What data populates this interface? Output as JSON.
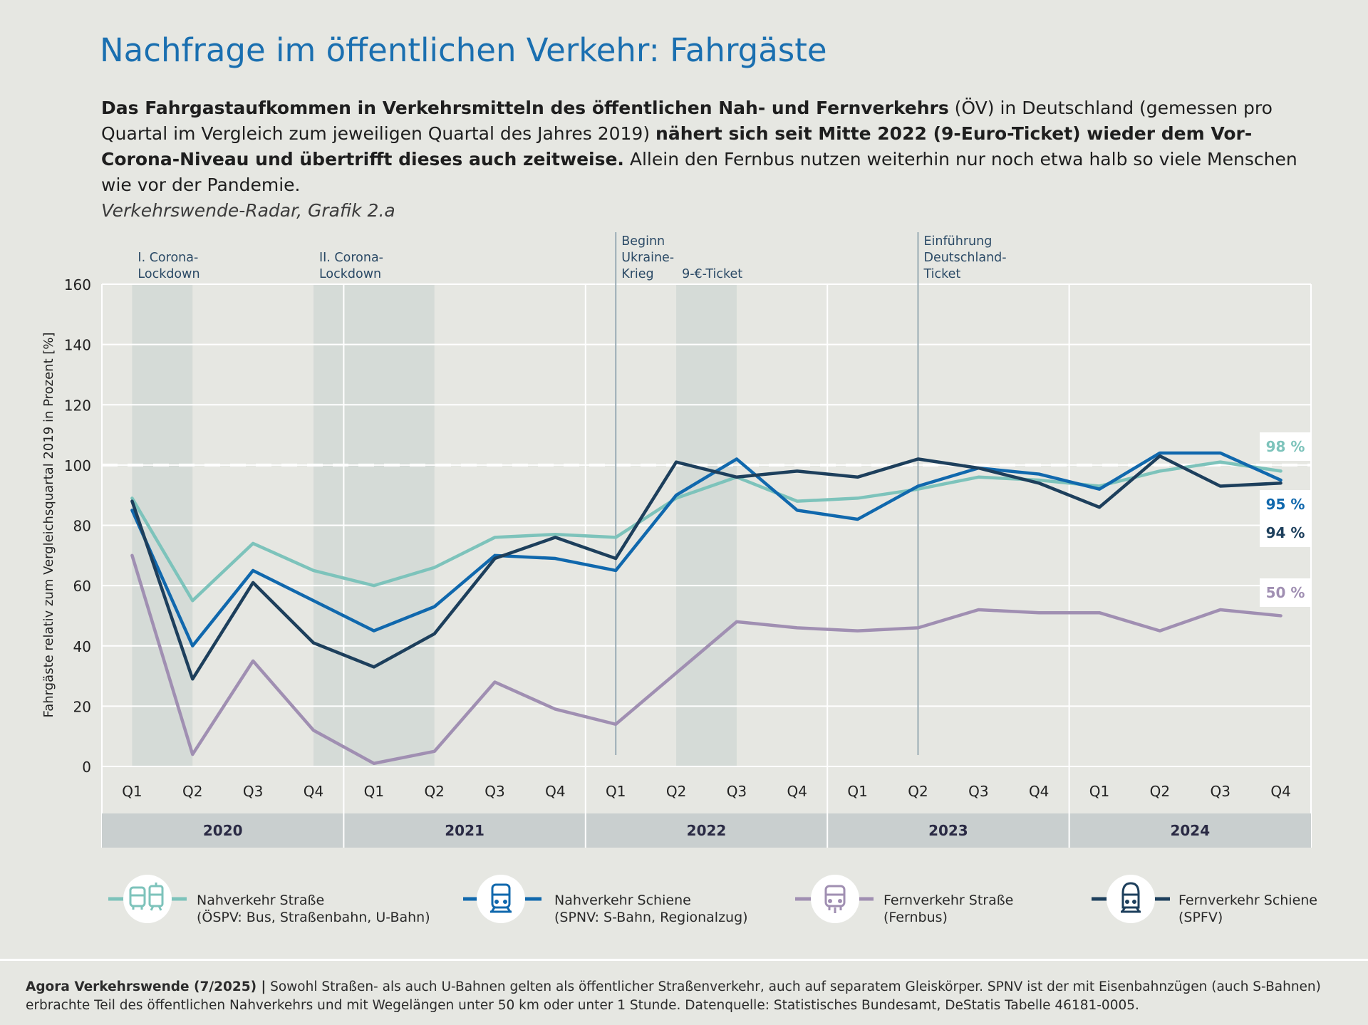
{
  "header": {
    "title": "Nachfrage im öffentlichen Verkehr: Fahrgäste",
    "desc_bold_1": "Das Fahrgastaufkommen in Verkehrsmitteln des öffentlichen Nah- und Fernverkehrs",
    "desc_text_1": " (ÖV) in Deutschland (gemessen pro Quartal im Vergleich zum jeweiligen Quartal des Jahres 2019) ",
    "desc_bold_2": "nähert sich seit Mitte 2022 (9-Euro-Ticket) wieder dem Vor-Corona-Niveau und übertrifft dieses auch zeitweise.",
    "desc_text_2": " Allein den Fernbus nutzen weiterhin nur noch etwa halb so viele Menschen wie vor der Pandemie.",
    "source": "Verkehrswende-Radar, Grafik 2.a"
  },
  "chart_data": {
    "type": "line",
    "ylabel": "Fahrgäste relativ zum Vergleichsquartal 2019 in Prozent [%]",
    "ylim": [
      0,
      160
    ],
    "yticks": [
      "0",
      "20",
      "40",
      "60",
      "80",
      "100",
      "120",
      "140",
      "160"
    ],
    "reference_line": 100,
    "grid": true,
    "categories": [
      "Q1",
      "Q2",
      "Q3",
      "Q4",
      "Q1",
      "Q2",
      "Q3",
      "Q4",
      "Q1",
      "Q2",
      "Q3",
      "Q4",
      "Q1",
      "Q2",
      "Q3",
      "Q4",
      "Q1",
      "Q2",
      "Q3",
      "Q4"
    ],
    "years": [
      "2020",
      "2021",
      "2022",
      "2023",
      "2024"
    ],
    "series": [
      {
        "name": "Nahverkehr Straße",
        "name_sub": "(ÖSPV: Bus, Straßenbahn, U-Bahn)",
        "color": "#7dc3bb",
        "end_label": "98 %",
        "values": [
          89,
          55,
          74,
          65,
          60,
          66,
          76,
          77,
          76,
          89,
          96,
          88,
          89,
          92,
          96,
          95,
          93,
          98,
          101,
          98
        ]
      },
      {
        "name": "Nahverkehr Schiene",
        "name_sub": "(SPNV: S-Bahn, Regionalzug)",
        "color": "#1068ad",
        "end_label": "95 %",
        "values": [
          85,
          40,
          65,
          55,
          45,
          53,
          70,
          69,
          65,
          90,
          102,
          85,
          82,
          93,
          99,
          97,
          92,
          104,
          104,
          95
        ]
      },
      {
        "name": "Fernverkehr Straße",
        "name_sub": "(Fernbus)",
        "color": "#a08fb2",
        "end_label": "50 %",
        "values": [
          70,
          4,
          35,
          12,
          1,
          5,
          28,
          19,
          14,
          31,
          48,
          46,
          45,
          46,
          52,
          51,
          51,
          45,
          52,
          50
        ]
      },
      {
        "name": "Fernverkehr Schiene",
        "name_sub": "(SPFV)",
        "color": "#1d3f5c",
        "end_label": "94 %",
        "values": [
          88,
          29,
          61,
          41,
          33,
          44,
          69,
          76,
          69,
          101,
          96,
          98,
          96,
          102,
          99,
          94,
          86,
          103,
          93,
          94
        ]
      }
    ],
    "shaded_periods": [
      {
        "from_index": 0,
        "to_index": 1,
        "label_1": "I. Corona-",
        "label_2": "Lockdown"
      },
      {
        "from_index": 3,
        "to_index": 5,
        "label_1": "II. Corona-",
        "label_2": "Lockdown"
      },
      {
        "from_index": 9,
        "to_index": 10,
        "label_1": "9-€-Ticket",
        "label_2": ""
      }
    ],
    "event_lines": [
      {
        "index": 8,
        "label_1": "Beginn",
        "label_2": "Ukraine-",
        "label_3": "Krieg"
      },
      {
        "index": 13,
        "label_1": "Einführung",
        "label_2": "Deutschland-",
        "label_3": "Ticket"
      }
    ]
  },
  "legend_icons": [
    "bus-tram-icon",
    "train-icon",
    "coach-bus-icon",
    "high-speed-train-icon"
  ],
  "footer": {
    "bold": "Agora Verkehrswende (7/2025) |",
    "text": " Sowohl Straßen- als auch U-Bahnen gelten als öffentlicher Straßenverkehr, auch auf separatem Gleiskörper. SPNV ist der mit Eisenbahnzügen (auch S-Bahnen) erbrachte Teil des öffentlichen Nahverkehrs und mit Wegelängen unter 50 km oder unter 1 Stunde. Datenquelle: Statistisches Bundesamt, DeStatis Tabelle 46181-0005."
  }
}
